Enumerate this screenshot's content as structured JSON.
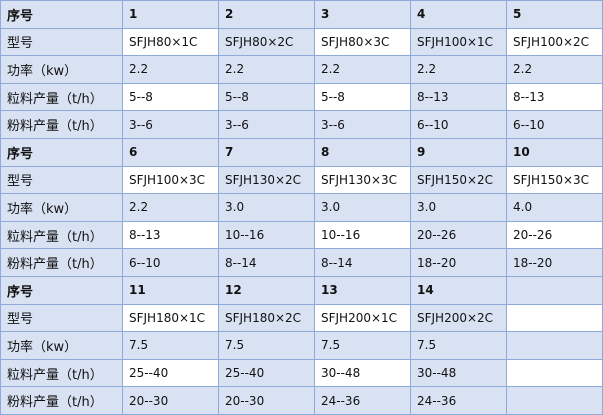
{
  "sections": [
    {
      "header": "序号",
      "ids": [
        "1",
        "2",
        "3",
        "4",
        "5"
      ],
      "rows": [
        {
          "label": "型号",
          "values": [
            "SFJH80×1C",
            "SFJH80×2C",
            "SFJH80×3C",
            "SFJH100×1C",
            "SFJH100×2C"
          ]
        },
        {
          "label": "功率（kw）",
          "values": [
            "2.2",
            "2.2",
            "2.2",
            "2.2",
            "2.2"
          ]
        },
        {
          "label": "粒料产量（t/h）",
          "values": [
            "5--8",
            "5--8",
            "5--8",
            "8--13",
            "8--13"
          ]
        },
        {
          "label": "粉料产量（t/h）",
          "values": [
            "3--6",
            "3--6",
            "3--6",
            "6--10",
            "6--10"
          ]
        }
      ]
    },
    {
      "header": "序号",
      "ids": [
        "6",
        "7",
        "8",
        "9",
        "10"
      ],
      "rows": [
        {
          "label": "型号",
          "values": [
            "SFJH100×3C",
            "SFJH130×2C",
            "SFJH130×3C",
            "SFJH150×2C",
            "SFJH150×3C"
          ]
        },
        {
          "label": "功率（kw）",
          "values": [
            "2.2",
            "3.0",
            "3.0",
            "3.0",
            "4.0"
          ]
        },
        {
          "label": "粒料产量（t/h）",
          "values": [
            "8--13",
            "10--16",
            "10--16",
            "20--26",
            "20--26"
          ]
        },
        {
          "label": "粉料产量（t/h）",
          "values": [
            "6--10",
            "8--14",
            "8--14",
            "18--20",
            "18--20"
          ]
        }
      ]
    },
    {
      "header": "序号",
      "ids": [
        "11",
        "12",
        "13",
        "14",
        ""
      ],
      "rows": [
        {
          "label": "型号",
          "values": [
            "SFJH180×1C",
            "SFJH180×2C",
            "SFJH200×1C",
            "SFJH200×2C",
            ""
          ]
        },
        {
          "label": "功率（kw）",
          "values": [
            "7.5",
            "7.5",
            "7.5",
            "7.5",
            ""
          ]
        },
        {
          "label": "粒料产量（t/h）",
          "values": [
            "25--40",
            "25--40",
            "30--48",
            "30--48",
            ""
          ]
        },
        {
          "label": "粉料产量（t/h）",
          "values": [
            "20--30",
            "20--30",
            "24--36",
            "24--36",
            ""
          ]
        }
      ]
    }
  ]
}
